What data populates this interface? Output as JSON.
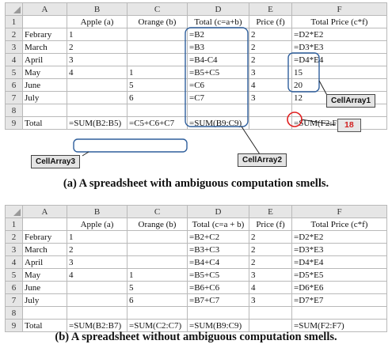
{
  "columns": [
    "A",
    "B",
    "C",
    "D",
    "E",
    "F"
  ],
  "rows": [
    "1",
    "2",
    "3",
    "4",
    "5",
    "6",
    "7",
    "8",
    "9"
  ],
  "sheet_a": {
    "cells": [
      [
        "",
        "Apple (a)",
        "Orange (b)",
        "Total (c=a+b)",
        "Price (f)",
        "Total  Price (c*f)"
      ],
      [
        "Febrary",
        "1",
        "",
        "=B2",
        "2",
        "=D2*E2"
      ],
      [
        "March",
        "2",
        "",
        "=B3",
        "2",
        "=D3*E3"
      ],
      [
        "April",
        "3",
        "",
        "=B4-C4",
        "2",
        "=D4*E4"
      ],
      [
        "May",
        "4",
        "1",
        "=B5+C5",
        "3",
        "15"
      ],
      [
        "June",
        "",
        "5",
        "=C6",
        "4",
        "20"
      ],
      [
        "July",
        "",
        "6",
        "=C7",
        "3",
        "12"
      ],
      [
        "",
        "",
        "",
        "",
        "",
        ""
      ],
      [
        "Total",
        "=SUM(B2:B5)",
        "=C5+C6+C7",
        "=SUM(B9:C9)",
        "",
        "=SUM(F2:F7)"
      ]
    ],
    "caption": "(a) A spreadsheet with ambiguous computation smells.",
    "annotations": {
      "cellarray1": "CellArray1",
      "cellarray2": "CellArray2",
      "cellarray3": "CellArray3",
      "error_value": "18"
    }
  },
  "sheet_b": {
    "cells": [
      [
        "",
        "Apple (a)",
        "Orange (b)",
        "Total (c=a + b)",
        "Price (f)",
        "Total  Price (c*f)"
      ],
      [
        "Febrary",
        "1",
        "",
        "=B2+C2",
        "2",
        "=D2*E2"
      ],
      [
        "March",
        "2",
        "",
        "=B3+C3",
        "2",
        "=D3*E3"
      ],
      [
        "April",
        "3",
        "",
        "=B4+C4",
        "2",
        "=D4*E4"
      ],
      [
        "May",
        "4",
        "1",
        "=B5+C5",
        "3",
        "=D5*E5"
      ],
      [
        "June",
        "",
        "5",
        "=B6+C6",
        "4",
        "=D6*E6"
      ],
      [
        "July",
        "",
        "6",
        "=B7+C7",
        "3",
        "=D7*E7"
      ],
      [
        "",
        "",
        "",
        "",
        "",
        ""
      ],
      [
        "Total",
        "=SUM(B2:B7)",
        "=SUM(C2:C7)",
        "=SUM(B9:C9)",
        "",
        "=SUM(F2:F7)"
      ]
    ],
    "caption": "(b) A spreadsheet without ambiguous computation smells."
  },
  "colors": {
    "highlight_box": "#2f5f9c",
    "error_circle": "#e02020",
    "error_text": "#d21f1f"
  }
}
